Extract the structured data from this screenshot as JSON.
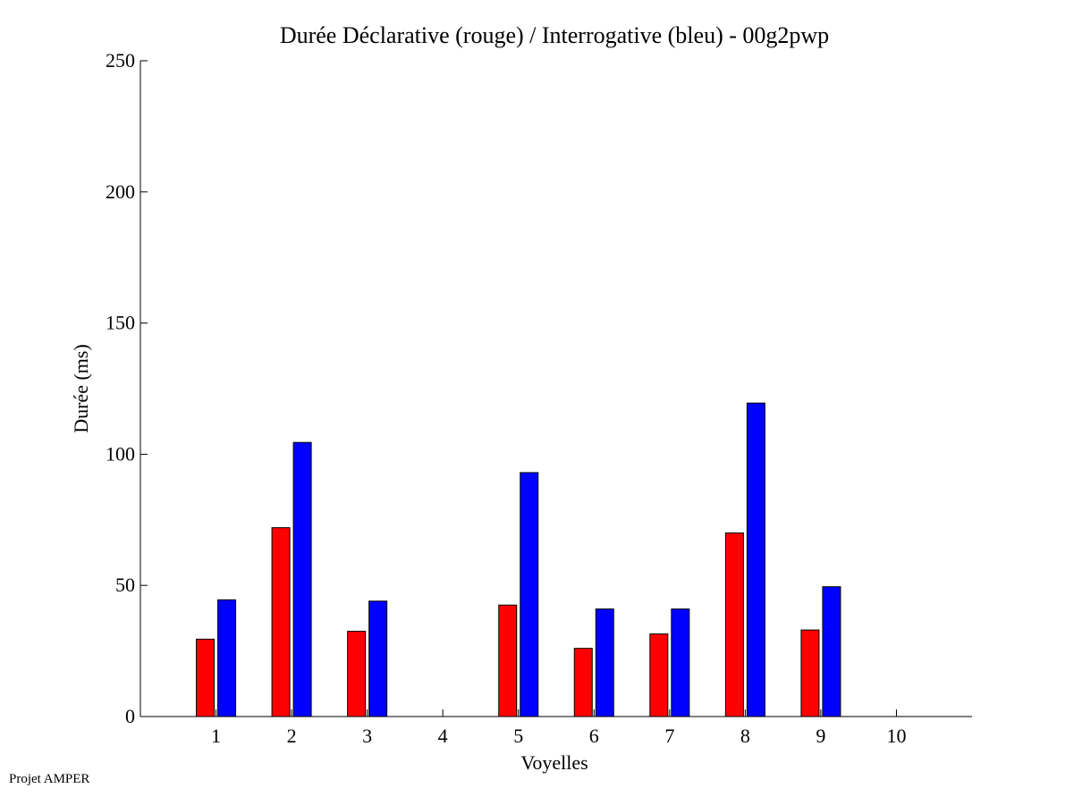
{
  "chart_data": {
    "type": "bar",
    "title": "Durée Déclarative (rouge) / Interrogative (bleu) - 00g2pwp",
    "xlabel": "Voyelles",
    "ylabel": "Durée (ms)",
    "ylim": [
      0,
      250
    ],
    "yticks": [
      0,
      50,
      100,
      150,
      200,
      250
    ],
    "categories": [
      "1",
      "2",
      "3",
      "4",
      "5",
      "6",
      "7",
      "8",
      "9",
      "10"
    ],
    "series": [
      {
        "color": "#ff0000",
        "values": [
          29.5,
          72,
          32.5,
          null,
          42.5,
          26,
          31.5,
          70,
          33,
          null
        ]
      },
      {
        "color": "#0000ff",
        "values": [
          44.5,
          104.5,
          44,
          null,
          93,
          41,
          41,
          119.5,
          49.5,
          null
        ]
      }
    ],
    "grid": false
  },
  "footer": {
    "text": "Projet AMPER"
  }
}
